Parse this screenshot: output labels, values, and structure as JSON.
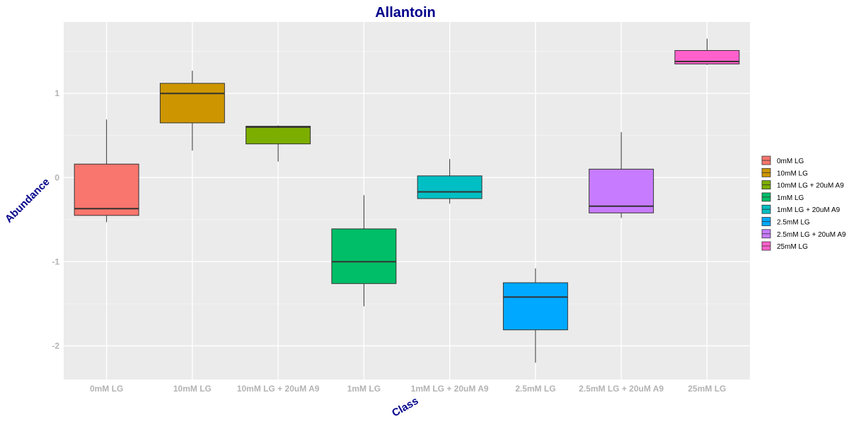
{
  "chart_data": {
    "type": "boxplot",
    "title": "Allantoin",
    "xlabel": "Class",
    "ylabel": "Abundance",
    "ylim": [
      -2.4,
      1.85
    ],
    "yticks": [
      -2,
      -1,
      0,
      1
    ],
    "grid": true,
    "legend": "right",
    "categories": [
      "0mM LG",
      "10mM LG",
      "10mM LG + 20uM A9",
      "1mM LG",
      "1mM LG + 20uM A9",
      "2.5mM LG",
      "2.5mM LG + 20uM A9",
      "25mM LG"
    ],
    "series": [
      {
        "name": "0mM LG",
        "color": "#F8766D",
        "min": -0.53,
        "q1": -0.45,
        "median": -0.37,
        "q3": 0.16,
        "max": 0.69
      },
      {
        "name": "10mM LG",
        "color": "#CD9600",
        "min": 0.32,
        "q1": 0.65,
        "median": 1.0,
        "q3": 1.12,
        "max": 1.27
      },
      {
        "name": "10mM LG + 20uM A9",
        "color": "#7CAE00",
        "min": 0.19,
        "q1": 0.4,
        "median": 0.6,
        "q3": 0.61,
        "max": 0.62
      },
      {
        "name": "1mM LG",
        "color": "#00BE67",
        "min": -1.53,
        "q1": -1.26,
        "median": -1.0,
        "q3": -0.61,
        "max": -0.21
      },
      {
        "name": "1mM LG + 20uM A9",
        "color": "#00BFC4",
        "min": -0.31,
        "q1": -0.25,
        "median": -0.17,
        "q3": 0.02,
        "max": 0.22
      },
      {
        "name": "2.5mM LG",
        "color": "#00A9FF",
        "min": -2.2,
        "q1": -1.81,
        "median": -1.42,
        "q3": -1.25,
        "max": -1.08
      },
      {
        "name": "2.5mM LG + 20uM A9",
        "color": "#C77CFF",
        "min": -0.48,
        "q1": -0.42,
        "median": -0.34,
        "q3": 0.1,
        "max": 0.54
      },
      {
        "name": "25mM LG",
        "color": "#FF61CC",
        "min": 1.34,
        "q1": 1.35,
        "median": 1.38,
        "q3": 1.51,
        "max": 1.65
      }
    ]
  }
}
